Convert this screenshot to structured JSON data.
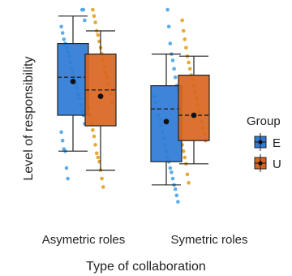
{
  "chart_data": {
    "type": "boxplot",
    "xlabel": "Type of  collaboration",
    "ylabel": "Level of responsibility",
    "categories": [
      "Asymetric roles",
      "Symetric roles"
    ],
    "ylim": [
      0,
      10
    ],
    "legend": {
      "title": "Group",
      "placement": "right",
      "entries": [
        {
          "name": "E",
          "color": "#2E7BD6"
        },
        {
          "name": "U",
          "color": "#D9661F"
        }
      ]
    },
    "boxes": [
      {
        "category": "Asymetric roles",
        "group": "E",
        "whisker_low": 3.3,
        "q1": 5.0,
        "median": 6.8,
        "q3": 8.4,
        "whisker_high": 9.7,
        "mean": 6.6
      },
      {
        "category": "Asymetric roles",
        "group": "U",
        "whisker_low": 2.4,
        "q1": 4.5,
        "median": 6.2,
        "q3": 7.9,
        "whisker_high": 9.0,
        "mean": 5.9
      },
      {
        "category": "Symetric roles",
        "group": "E",
        "whisker_low": 1.7,
        "q1": 2.8,
        "median": 5.3,
        "q3": 6.4,
        "whisker_high": 7.9,
        "mean": 4.7
      },
      {
        "category": "Symetric roles",
        "group": "U",
        "whisker_low": 2.7,
        "q1": 3.8,
        "median": 5.0,
        "q3": 6.9,
        "whisker_high": 7.8,
        "mean": 5.0
      }
    ],
    "points": [
      {
        "category": "Asymetric roles",
        "group": "E",
        "values": [
          2.0,
          2.5,
          3.3,
          3.4,
          3.8,
          4.2,
          4.6,
          5.0,
          5.2,
          5.5,
          5.8,
          6.0,
          6.3,
          6.5,
          6.8,
          7.0,
          7.2,
          7.5,
          7.8,
          8.0,
          8.2,
          8.4,
          8.6,
          8.9,
          9.2,
          9.5,
          10.0,
          10.0
        ]
      },
      {
        "category": "Asymetric roles",
        "group": "U",
        "values": [
          1.6,
          2.0,
          2.4,
          2.8,
          3.0,
          3.2,
          3.6,
          4.0,
          4.3,
          4.6,
          5.0,
          5.3,
          5.6,
          6.0,
          6.2,
          6.5,
          6.8,
          7.0,
          7.3,
          7.6,
          7.9,
          8.2,
          8.5,
          8.8,
          9.0,
          9.4,
          9.7,
          10.0
        ]
      },
      {
        "category": "Symetric roles",
        "group": "E",
        "values": [
          0.9,
          1.2,
          1.5,
          1.7,
          2.0,
          2.3,
          2.5,
          2.8,
          3.0,
          3.3,
          3.6,
          3.9,
          4.2,
          4.5,
          4.8,
          5.0,
          5.3,
          5.6,
          5.9,
          6.2,
          6.4,
          6.8,
          7.2,
          7.6,
          7.9,
          8.4,
          9.2,
          10.0
        ]
      },
      {
        "category": "Symetric roles",
        "group": "U",
        "values": [
          1.8,
          2.2,
          2.7,
          3.0,
          3.3,
          3.6,
          3.8,
          4.1,
          4.4,
          4.7,
          5.0,
          5.2,
          5.5,
          5.8,
          6.1,
          6.4,
          6.7,
          6.9,
          7.2,
          7.5,
          7.8,
          8.2,
          8.6,
          9.0,
          9.5
        ]
      }
    ]
  }
}
